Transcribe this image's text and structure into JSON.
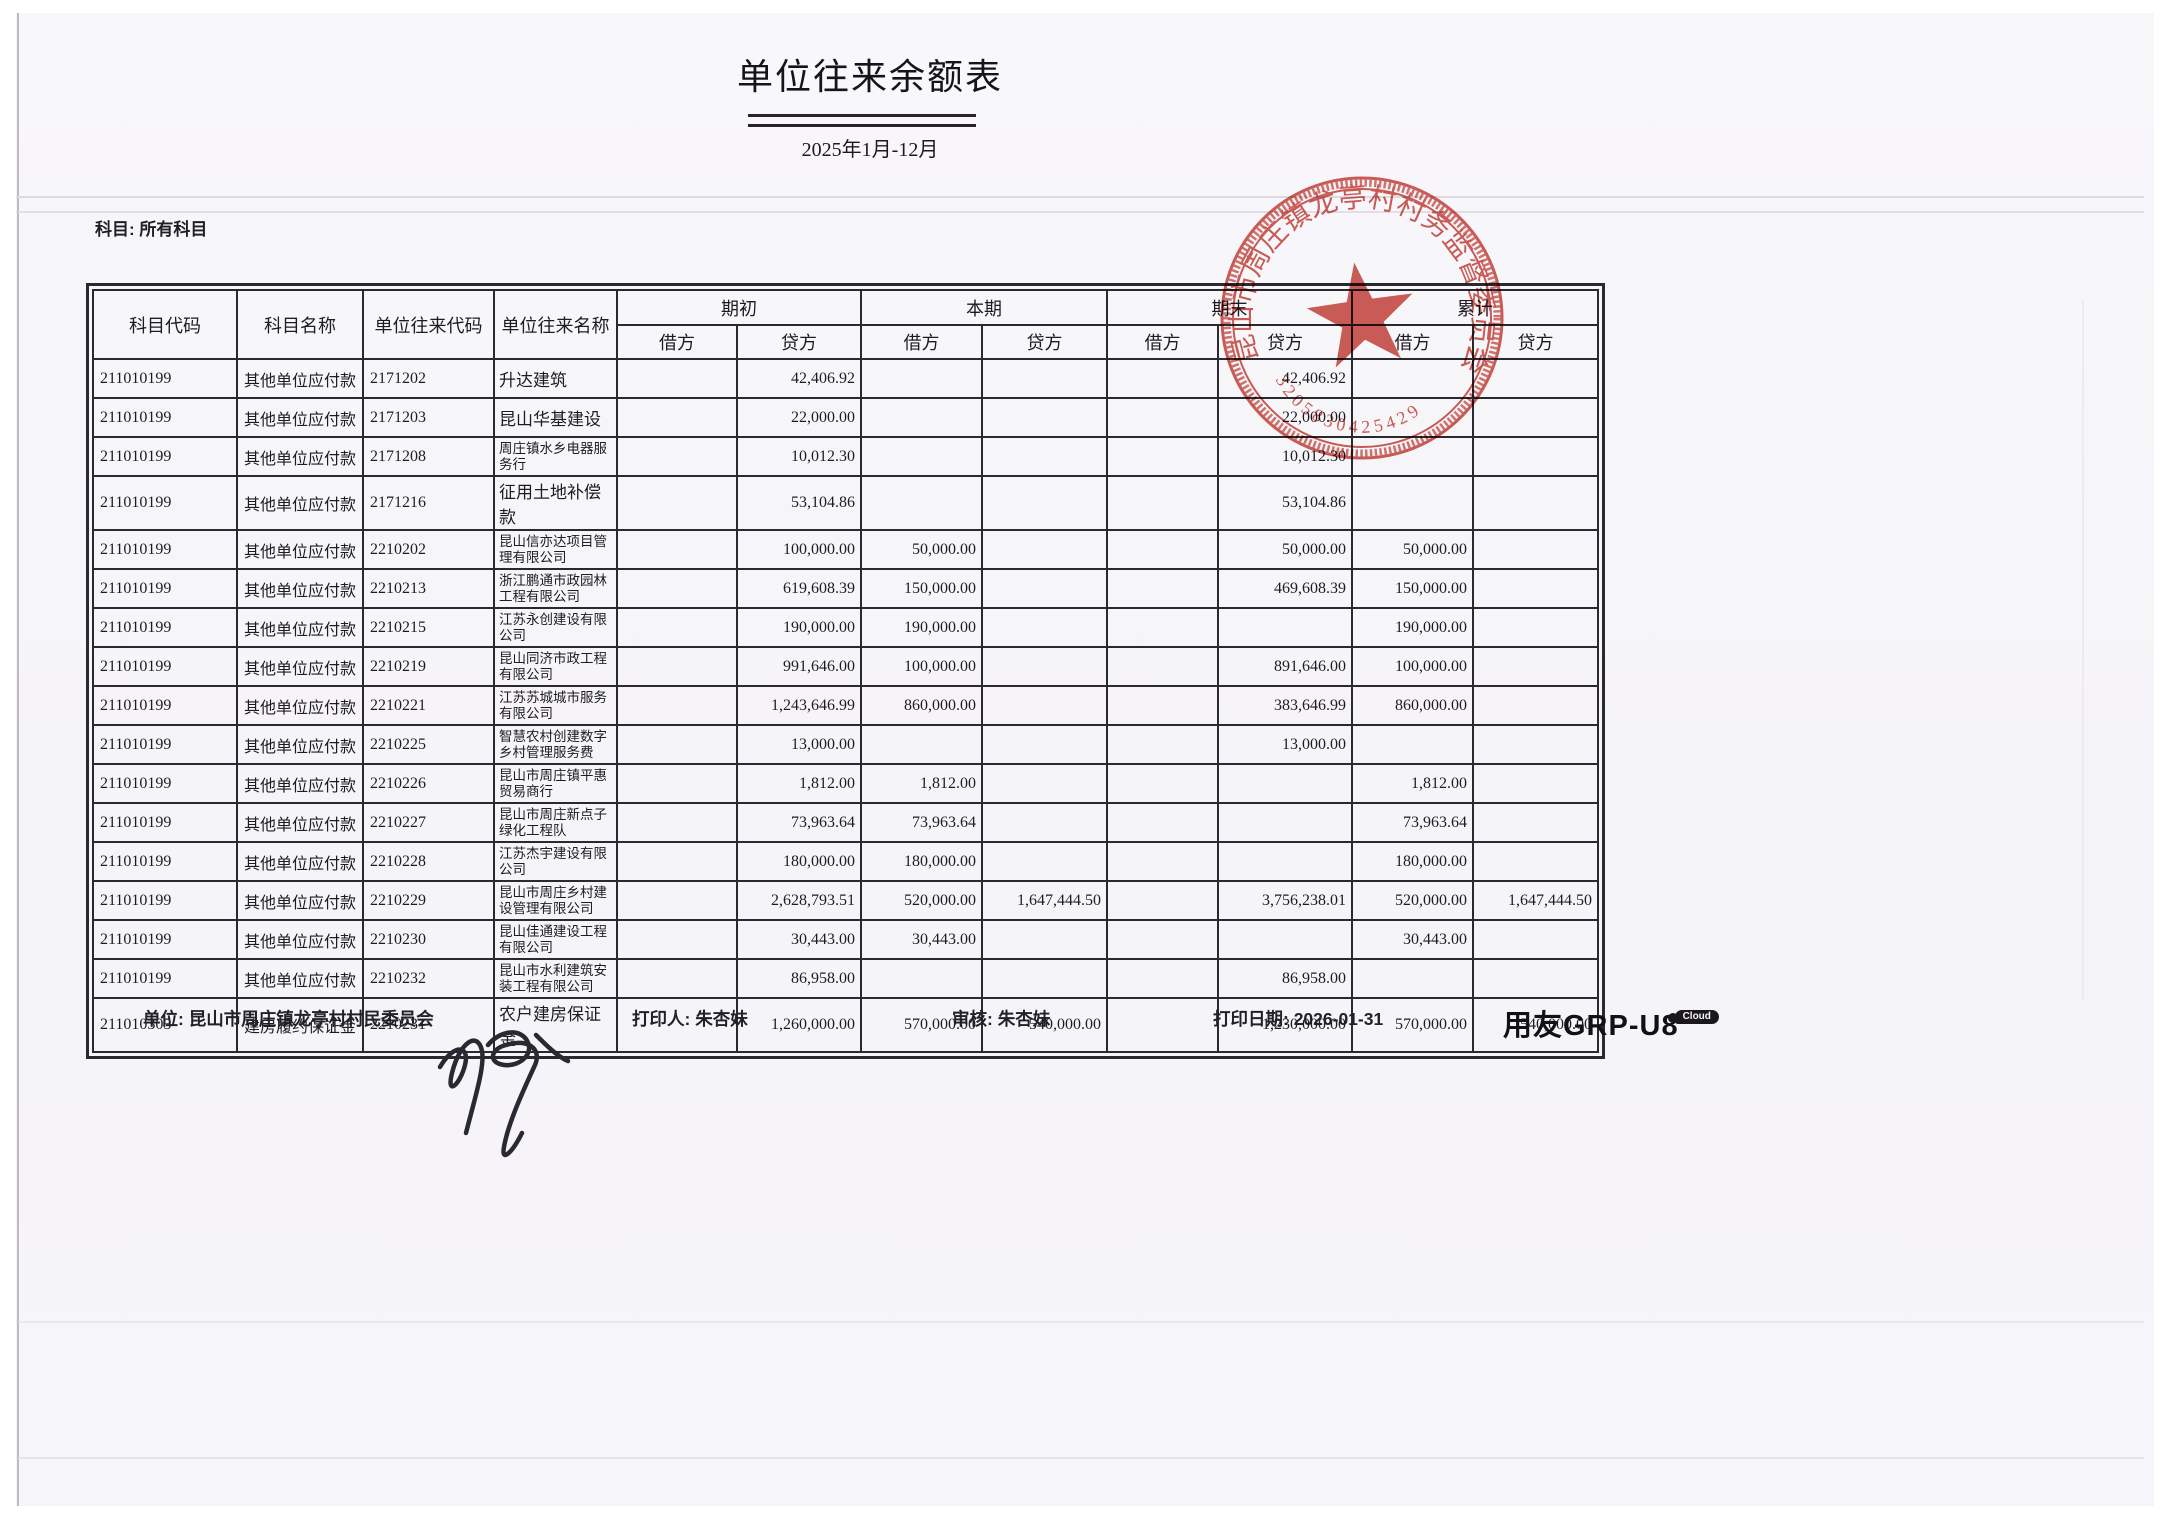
{
  "page": {
    "title": "单位往来余额表",
    "period": "2025年1月-12月",
    "subject_filter": "科目: 所有科目"
  },
  "table": {
    "columns": {
      "subject_code": "科目代码",
      "subject_name": "科目名称",
      "unit_code": "单位往来代码",
      "unit_name": "单位往来名称",
      "groups": [
        {
          "label": "期初",
          "debit": "借方",
          "credit": "贷方"
        },
        {
          "label": "本期",
          "debit": "借方",
          "credit": "贷方"
        },
        {
          "label": "期末",
          "debit": "借方",
          "credit": "贷方"
        },
        {
          "label": "累计",
          "debit": "借方",
          "credit": "贷方"
        }
      ]
    },
    "rows": [
      {
        "subject_code": "211010199",
        "subject_name": "其他单位应付款",
        "unit_code": "2171202",
        "unit_name": "升达建筑",
        "opening_debit": "",
        "opening_credit": "42,406.92",
        "current_debit": "",
        "current_credit": "",
        "ending_debit": "",
        "ending_credit": "42,406.92",
        "cumulative_debit": "",
        "cumulative_credit": ""
      },
      {
        "subject_code": "211010199",
        "subject_name": "其他单位应付款",
        "unit_code": "2171203",
        "unit_name": "昆山华基建设",
        "opening_debit": "",
        "opening_credit": "22,000.00",
        "current_debit": "",
        "current_credit": "",
        "ending_debit": "",
        "ending_credit": "22,000.00",
        "cumulative_debit": "",
        "cumulative_credit": ""
      },
      {
        "subject_code": "211010199",
        "subject_name": "其他单位应付款",
        "unit_code": "2171208",
        "unit_name": "周庄镇水乡电器服务行",
        "opening_debit": "",
        "opening_credit": "10,012.30",
        "current_debit": "",
        "current_credit": "",
        "ending_debit": "",
        "ending_credit": "10,012.30",
        "cumulative_debit": "",
        "cumulative_credit": ""
      },
      {
        "subject_code": "211010199",
        "subject_name": "其他单位应付款",
        "unit_code": "2171216",
        "unit_name": "征用土地补偿款",
        "opening_debit": "",
        "opening_credit": "53,104.86",
        "current_debit": "",
        "current_credit": "",
        "ending_debit": "",
        "ending_credit": "53,104.86",
        "cumulative_debit": "",
        "cumulative_credit": ""
      },
      {
        "subject_code": "211010199",
        "subject_name": "其他单位应付款",
        "unit_code": "2210202",
        "unit_name": "昆山信亦达项目管理有限公司",
        "opening_debit": "",
        "opening_credit": "100,000.00",
        "current_debit": "50,000.00",
        "current_credit": "",
        "ending_debit": "",
        "ending_credit": "50,000.00",
        "cumulative_debit": "50,000.00",
        "cumulative_credit": ""
      },
      {
        "subject_code": "211010199",
        "subject_name": "其他单位应付款",
        "unit_code": "2210213",
        "unit_name": "浙江鹏通市政园林工程有限公司",
        "opening_debit": "",
        "opening_credit": "619,608.39",
        "current_debit": "150,000.00",
        "current_credit": "",
        "ending_debit": "",
        "ending_credit": "469,608.39",
        "cumulative_debit": "150,000.00",
        "cumulative_credit": ""
      },
      {
        "subject_code": "211010199",
        "subject_name": "其他单位应付款",
        "unit_code": "2210215",
        "unit_name": "江苏永创建设有限公司",
        "opening_debit": "",
        "opening_credit": "190,000.00",
        "current_debit": "190,000.00",
        "current_credit": "",
        "ending_debit": "",
        "ending_credit": "",
        "cumulative_debit": "190,000.00",
        "cumulative_credit": ""
      },
      {
        "subject_code": "211010199",
        "subject_name": "其他单位应付款",
        "unit_code": "2210219",
        "unit_name": "昆山同济市政工程有限公司",
        "opening_debit": "",
        "opening_credit": "991,646.00",
        "current_debit": "100,000.00",
        "current_credit": "",
        "ending_debit": "",
        "ending_credit": "891,646.00",
        "cumulative_debit": "100,000.00",
        "cumulative_credit": ""
      },
      {
        "subject_code": "211010199",
        "subject_name": "其他单位应付款",
        "unit_code": "2210221",
        "unit_name": "江苏苏城城市服务有限公司",
        "opening_debit": "",
        "opening_credit": "1,243,646.99",
        "current_debit": "860,000.00",
        "current_credit": "",
        "ending_debit": "",
        "ending_credit": "383,646.99",
        "cumulative_debit": "860,000.00",
        "cumulative_credit": ""
      },
      {
        "subject_code": "211010199",
        "subject_name": "其他单位应付款",
        "unit_code": "2210225",
        "unit_name": "智慧农村创建数字乡村管理服务费",
        "opening_debit": "",
        "opening_credit": "13,000.00",
        "current_debit": "",
        "current_credit": "",
        "ending_debit": "",
        "ending_credit": "13,000.00",
        "cumulative_debit": "",
        "cumulative_credit": ""
      },
      {
        "subject_code": "211010199",
        "subject_name": "其他单位应付款",
        "unit_code": "2210226",
        "unit_name": "昆山市周庄镇平惠贸易商行",
        "opening_debit": "",
        "opening_credit": "1,812.00",
        "current_debit": "1,812.00",
        "current_credit": "",
        "ending_debit": "",
        "ending_credit": "",
        "cumulative_debit": "1,812.00",
        "cumulative_credit": ""
      },
      {
        "subject_code": "211010199",
        "subject_name": "其他单位应付款",
        "unit_code": "2210227",
        "unit_name": "昆山市周庄新点子绿化工程队",
        "opening_debit": "",
        "opening_credit": "73,963.64",
        "current_debit": "73,963.64",
        "current_credit": "",
        "ending_debit": "",
        "ending_credit": "",
        "cumulative_debit": "73,963.64",
        "cumulative_credit": ""
      },
      {
        "subject_code": "211010199",
        "subject_name": "其他单位应付款",
        "unit_code": "2210228",
        "unit_name": "江苏杰宇建设有限公司",
        "opening_debit": "",
        "opening_credit": "180,000.00",
        "current_debit": "180,000.00",
        "current_credit": "",
        "ending_debit": "",
        "ending_credit": "",
        "cumulative_debit": "180,000.00",
        "cumulative_credit": ""
      },
      {
        "subject_code": "211010199",
        "subject_name": "其他单位应付款",
        "unit_code": "2210229",
        "unit_name": "昆山市周庄乡村建设管理有限公司",
        "opening_debit": "",
        "opening_credit": "2,628,793.51",
        "current_debit": "520,000.00",
        "current_credit": "1,647,444.50",
        "ending_debit": "",
        "ending_credit": "3,756,238.01",
        "cumulative_debit": "520,000.00",
        "cumulative_credit": "1,647,444.50"
      },
      {
        "subject_code": "211010199",
        "subject_name": "其他单位应付款",
        "unit_code": "2210230",
        "unit_name": "昆山佳通建设工程有限公司",
        "opening_debit": "",
        "opening_credit": "30,443.00",
        "current_debit": "30,443.00",
        "current_credit": "",
        "ending_debit": "",
        "ending_credit": "",
        "cumulative_debit": "30,443.00",
        "cumulative_credit": ""
      },
      {
        "subject_code": "211010199",
        "subject_name": "其他单位应付款",
        "unit_code": "2210232",
        "unit_name": "昆山市水利建筑安装工程有限公司",
        "opening_debit": "",
        "opening_credit": "86,958.00",
        "current_debit": "",
        "current_credit": "",
        "ending_debit": "",
        "ending_credit": "86,958.00",
        "cumulative_debit": "",
        "cumulative_credit": ""
      },
      {
        "subject_code": "211010305",
        "subject_name": "建房履约保证金",
        "unit_code": "2210231",
        "unit_name": "农户建房保证金",
        "opening_debit": "",
        "opening_credit": "1,260,000.00",
        "current_debit": "570,000.00",
        "current_credit": "540,000.00",
        "ending_debit": "",
        "ending_credit": "1,230,000.00",
        "cumulative_debit": "570,000.00",
        "cumulative_credit": "540,000.00"
      }
    ]
  },
  "footer": {
    "unit": "单位: 昆山市周庄镇龙亭村村民委员会",
    "printed_by": "打印人: 朱杏妹",
    "reviewed_by": "审核: 朱杏妹",
    "print_date": "打印日期: 2026-01-31",
    "logo_brand": "用友GRP-U8",
    "logo_badge": "Cloud"
  },
  "stamp": {
    "ring_text": "昆山市周庄镇龙亭村村务监督委员会",
    "serial": "3205830425429",
    "color": "#c43a31"
  }
}
